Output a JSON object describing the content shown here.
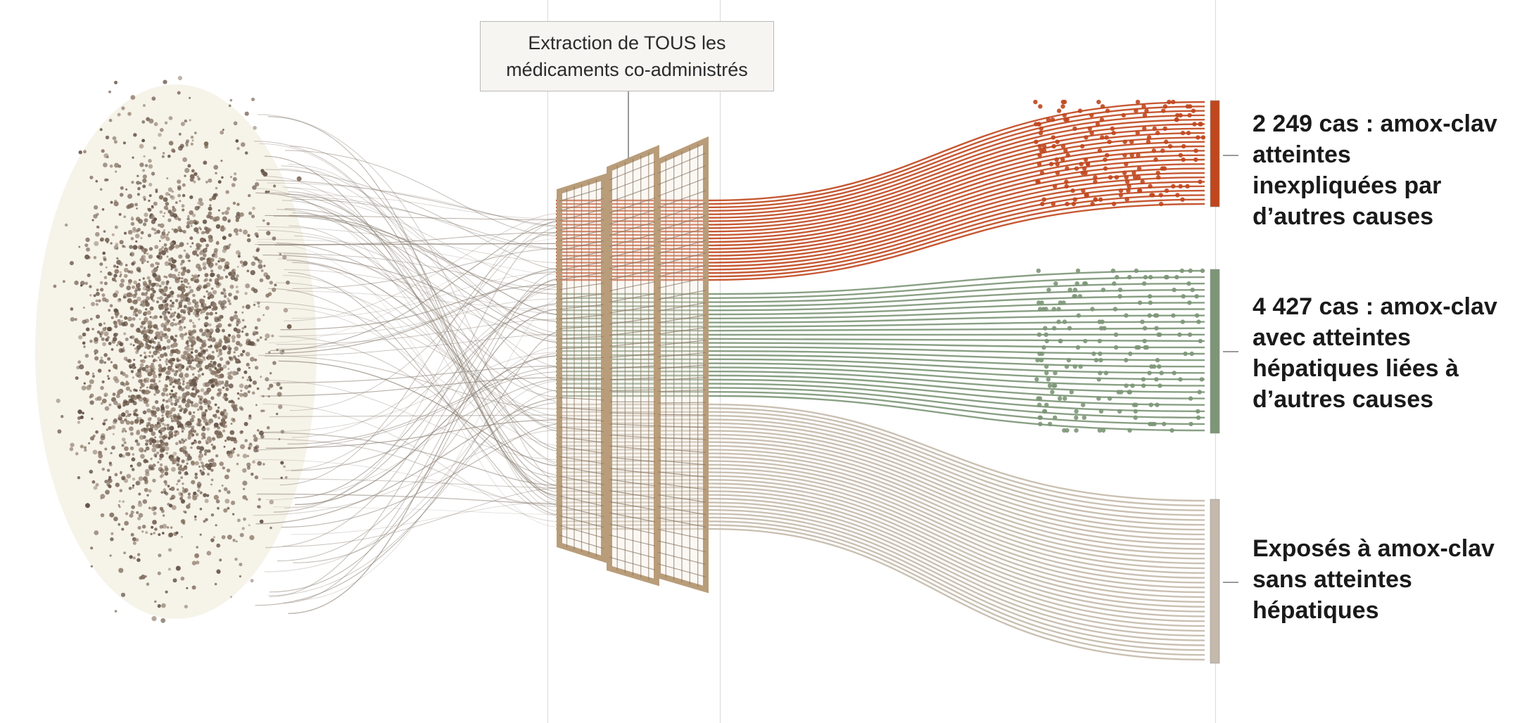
{
  "filter": {
    "label_line1": "Extraction de TOUS les",
    "label_line2": "médicaments co-administrés"
  },
  "groups": [
    {
      "id": "unexplained",
      "color": "#c0461d",
      "lines": [
        "2 249 cas : amox-clav",
        "atteintes",
        "inexpliquées par",
        "d’autres causes"
      ]
    },
    {
      "id": "other_causes",
      "color": "#7c9677",
      "lines": [
        "4 427 cas : amox-clav",
        "avec atteintes",
        "hépatiques liées à",
        "d’autres causes"
      ]
    },
    {
      "id": "no_injury",
      "color": "#c4b9aa",
      "lines": [
        "Exposés à amox-clav",
        "sans atteintes",
        "hépatiques"
      ]
    }
  ],
  "colors": {
    "cloud": "#7a6656",
    "fiber": "#8b7f73",
    "grid_frame": "#b99d7a",
    "background": "#ffffff"
  }
}
